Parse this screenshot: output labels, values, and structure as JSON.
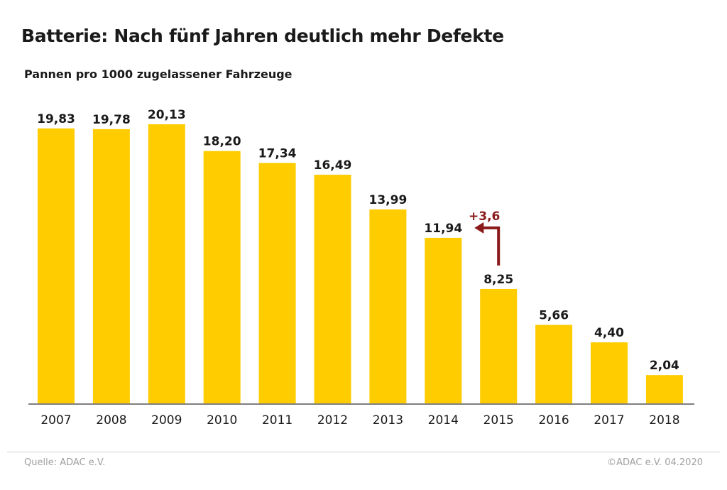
{
  "header": {
    "title": "Batterie: Nach fünf Jahren deutlich mehr Defekte",
    "subtitle": "Pannen pro 1000 zugelassener Fahrzeuge"
  },
  "footer": {
    "source": "Quelle: ADAC e.V.",
    "copyright": "©ADAC e.V.  04.2020"
  },
  "colors": {
    "bar": "#ffcc00",
    "annotation": "#8b1a1a",
    "text": "#1a1a1a",
    "axis": "#555555"
  },
  "chart_data": {
    "type": "bar",
    "title": "Batterie: Nach fünf Jahren deutlich mehr Defekte",
    "subtitle": "Pannen pro 1000 zugelassener Fahrzeuge",
    "categories": [
      "2007",
      "2008",
      "2009",
      "2010",
      "2011",
      "2012",
      "2013",
      "2014",
      "2015",
      "2016",
      "2017",
      "2018"
    ],
    "values": [
      19.83,
      19.78,
      20.13,
      18.2,
      17.34,
      16.49,
      13.99,
      11.94,
      8.25,
      5.66,
      4.4,
      2.04
    ],
    "value_labels": [
      "19,83",
      "19,78",
      "20,13",
      "18,20",
      "17,34",
      "16,49",
      "13,99",
      "11,94",
      "8,25",
      "5,66",
      "4,40",
      "2,04"
    ],
    "ylim": [
      0,
      20.13
    ],
    "grid": false,
    "legend": "none",
    "annotations": [
      {
        "text": "+3,6",
        "from": "2015",
        "to": "2014"
      }
    ]
  }
}
